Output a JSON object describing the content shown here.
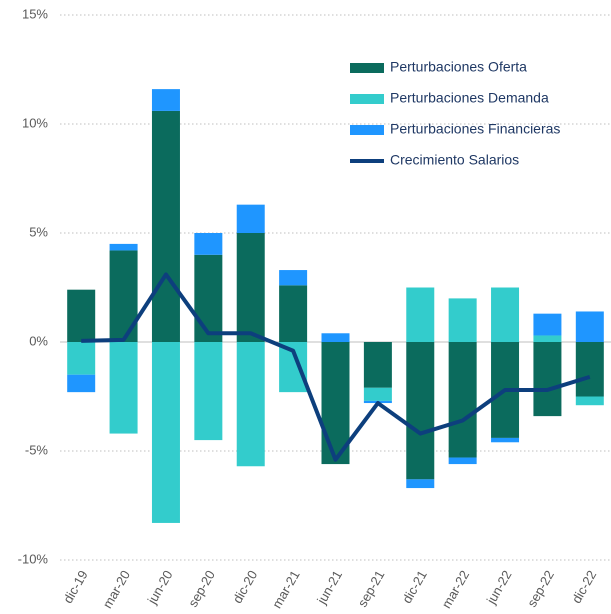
{
  "chart_data": {
    "type": "bar",
    "stacked": true,
    "categories": [
      "dic-19",
      "mar-20",
      "jun-20",
      "sep-20",
      "dic-20",
      "mar-21",
      "jun-21",
      "sep-21",
      "dic-21",
      "mar-22",
      "jun-22",
      "sep-22",
      "dic-22"
    ],
    "series": [
      {
        "name": "Perturbaciones Oferta",
        "type": "bar",
        "color": "#0b6b5d",
        "values": [
          2.4,
          4.2,
          10.6,
          4.0,
          5.0,
          2.6,
          -5.6,
          -2.1,
          -6.3,
          -5.3,
          -4.4,
          -3.4,
          -2.5
        ]
      },
      {
        "name": "Perturbaciones Demanda",
        "type": "bar",
        "color": "#33cccc",
        "values": [
          -1.5,
          -4.2,
          -8.3,
          -4.5,
          -5.7,
          -2.3,
          0,
          -0.6,
          2.5,
          2.0,
          2.5,
          0.3,
          -0.4
        ]
      },
      {
        "name": "Perturbaciones Financieras",
        "type": "bar",
        "color": "#1f96ff",
        "values": [
          -0.8,
          0.3,
          1.0,
          1.0,
          1.3,
          0.7,
          0.4,
          -0.1,
          -0.4,
          -0.3,
          -0.2,
          1.0,
          1.4
        ]
      },
      {
        "name": "Crecimiento Salarios",
        "type": "line",
        "color": "#0d3f7d",
        "values": [
          0.05,
          0.1,
          3.1,
          0.4,
          0.4,
          -0.4,
          -5.4,
          -2.8,
          -4.2,
          -3.6,
          -2.2,
          -2.2,
          -1.6
        ]
      }
    ],
    "ylim": [
      -10,
      15
    ],
    "yticks": [
      {
        "value": -10,
        "label": "-10%"
      },
      {
        "value": -5,
        "label": "-5%"
      },
      {
        "value": 0,
        "label": "0%"
      },
      {
        "value": 5,
        "label": "5%"
      },
      {
        "value": 10,
        "label": "10%"
      },
      {
        "value": 15,
        "label": "15%"
      }
    ],
    "grid": true,
    "legend": "upper right"
  }
}
